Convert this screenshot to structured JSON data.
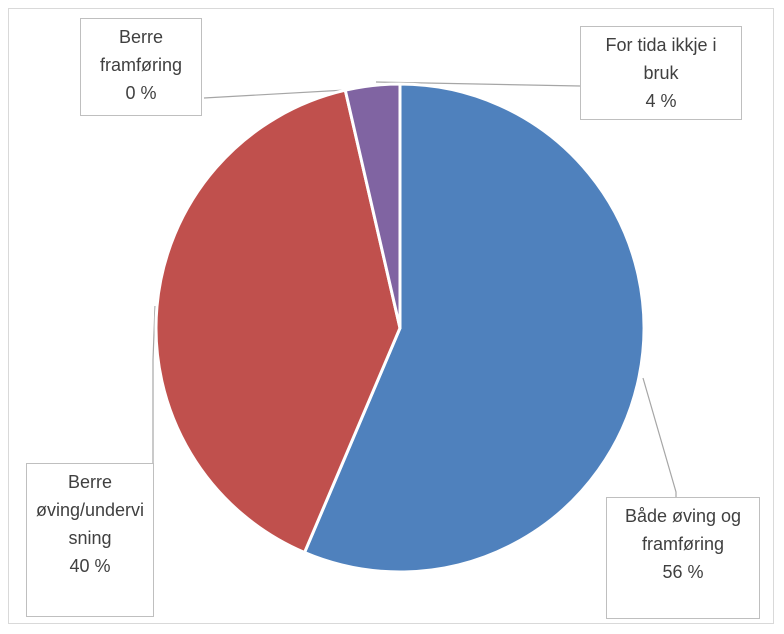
{
  "chart_data": {
    "type": "pie",
    "title": "",
    "start_angle_deg": 0,
    "direction": "clockwise",
    "slices": [
      {
        "label_lines": [
          "Både øving og",
          "framføring"
        ],
        "value_text": "56 %",
        "value": 56.4,
        "color": "#4f81bd"
      },
      {
        "label_lines": [
          "Berre",
          "øving/undervi",
          "sning"
        ],
        "value_text": "40 %",
        "value": 40.0,
        "color": "#c0504d"
      },
      {
        "label_lines": [
          "Berre",
          "framføring"
        ],
        "value_text": "0 %",
        "value": 0.0,
        "color": "#8064a2"
      },
      {
        "label_lines": [
          "For tida ikkje i",
          "bruk"
        ],
        "value_text": "4 %",
        "value": 3.6,
        "color": "#8064a2"
      }
    ],
    "legend": "none"
  }
}
